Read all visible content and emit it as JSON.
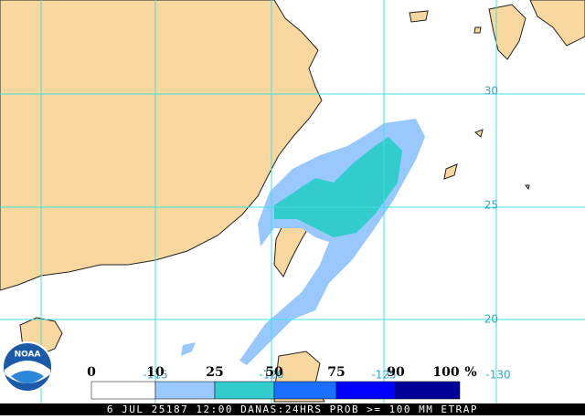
{
  "logo": "NOAA",
  "grid": {
    "lat_labels": [
      "30",
      "25",
      "20"
    ],
    "lon_labels": [
      "-115",
      "-120",
      "-125",
      "-130"
    ]
  },
  "legend": {
    "labels": [
      "0",
      "10",
      "25",
      "50",
      "75",
      "90",
      "100"
    ],
    "unit": "%",
    "colors": [
      "#ffffff",
      "#99c8ff",
      "#33cccc",
      "#1a6fff",
      "#0000ff",
      "#000099"
    ]
  },
  "caption": "6 JUL 25187 12:00 DANAS:24HRS PROB >= 100 MM ETRAP"
}
